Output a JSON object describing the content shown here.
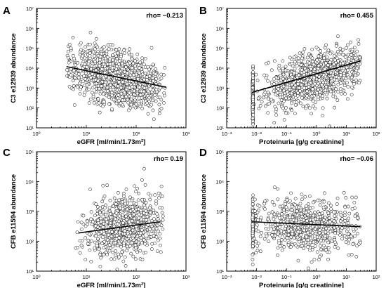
{
  "chart_data": [
    {
      "panel": "A",
      "type": "scatter",
      "xlabel": "eGFR [ml/min/1.73m²]",
      "ylabel": "C3 e12939 abundance",
      "xscale": "log",
      "yscale": "log",
      "xlim": [
        1,
        1000
      ],
      "ylim": [
        10,
        10000000
      ],
      "x_ticks": [
        1,
        10,
        100,
        1000
      ],
      "y_ticks": [
        10,
        100,
        1000,
        10000,
        100000,
        1000000,
        10000000
      ],
      "x_tick_labels": [
        "10⁰",
        "10¹",
        "10²",
        "10³"
      ],
      "y_tick_labels": [
        "10¹",
        "10²",
        "10³",
        "10⁴",
        "10⁵",
        "10⁶",
        "10⁷"
      ],
      "annotation": "rho= −0.213",
      "trend": {
        "x": [
          4,
          400
        ],
        "y": [
          12000,
          1100
        ]
      },
      "cloud": {
        "x_range": [
          4,
          400
        ],
        "x_center": 45,
        "y_center": 3000,
        "y_spread_decades": 0.65,
        "n_points": 1300,
        "slope": -0.213
      }
    },
    {
      "panel": "B",
      "type": "scatter",
      "xlabel": "Proteinuria [g/g creatinine]",
      "ylabel": "C3 e12939 abundance",
      "xscale": "log",
      "yscale": "log",
      "xlim": [
        0.001,
        100
      ],
      "ylim": [
        10,
        10000000
      ],
      "x_ticks": [
        0.001,
        0.01,
        0.1,
        1,
        10,
        100
      ],
      "y_ticks": [
        10,
        100,
        1000,
        10000,
        100000,
        1000000,
        10000000
      ],
      "x_tick_labels": [
        "10⁻³",
        "10⁻²",
        "10⁻¹",
        "10⁰",
        "10¹",
        "10²"
      ],
      "y_tick_labels": [
        "10¹",
        "10²",
        "10³",
        "10⁴",
        "10⁵",
        "10⁶",
        "10⁷"
      ],
      "annotation": "rho= 0.455",
      "trend": {
        "x": [
          0.007,
          30
        ],
        "y": [
          600,
          23000
        ]
      },
      "cloud": {
        "x_range": [
          0.007,
          30
        ],
        "x_center": 0.8,
        "y_center": 3000,
        "y_spread_decades": 0.6,
        "n_points": 1300,
        "slope": 0.455,
        "column_x": 0.0075
      }
    },
    {
      "panel": "C",
      "type": "scatter",
      "xlabel": "eGFR [ml/min/1.73m²]",
      "ylabel": "CFB e11594 abundance",
      "xscale": "log",
      "yscale": "log",
      "xlim": [
        1,
        1000
      ],
      "ylim": [
        10,
        100000
      ],
      "x_ticks": [
        1,
        10,
        100,
        1000
      ],
      "y_ticks": [
        10,
        100,
        1000,
        10000,
        100000
      ],
      "x_tick_labels": [
        "10⁰",
        "10¹",
        "10²",
        "10³"
      ],
      "y_tick_labels": [
        "10¹",
        "10²",
        "10³",
        "10⁴",
        "10⁵"
      ],
      "annotation": "rho= 0.19",
      "trend": {
        "x": [
          7,
          300
        ],
        "y": [
          190,
          450
        ]
      },
      "cloud": {
        "x_range": [
          6,
          350
        ],
        "x_center": 55,
        "y_center": 300,
        "y_spread_decades": 0.5,
        "n_points": 850,
        "slope": 0.19
      }
    },
    {
      "panel": "D",
      "type": "scatter",
      "xlabel": "Proteinuria [g/g creatinine]",
      "ylabel": "CFB e11594 abundance",
      "xscale": "log",
      "yscale": "log",
      "xlim": [
        0.001,
        100
      ],
      "ylim": [
        10,
        100000
      ],
      "x_ticks": [
        0.001,
        0.01,
        0.1,
        1,
        10,
        100
      ],
      "y_ticks": [
        10,
        100,
        1000,
        10000,
        100000
      ],
      "x_tick_labels": [
        "10⁻³",
        "10⁻²",
        "10⁻¹",
        "10⁰",
        "10¹",
        "10²"
      ],
      "y_tick_labels": [
        "10¹",
        "10²",
        "10³",
        "10⁴",
        "10⁵"
      ],
      "annotation": "rho= −0.06",
      "trend": {
        "x": [
          0.007,
          30
        ],
        "y": [
          450,
          310
        ]
      },
      "cloud": {
        "x_range": [
          0.007,
          30
        ],
        "x_center": 0.5,
        "y_center": 350,
        "y_spread_decades": 0.45,
        "n_points": 850,
        "slope": -0.06,
        "column_x": 0.0075
      }
    }
  ]
}
